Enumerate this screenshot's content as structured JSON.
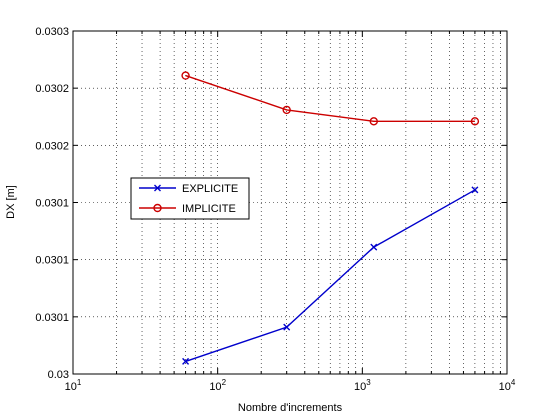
{
  "chart_data": {
    "type": "line",
    "xscale": "log",
    "xlabel": "Nombre d'increments",
    "ylabel": "DX [m]",
    "xlim": [
      10,
      10000
    ],
    "ylim": [
      0.03,
      0.0303
    ],
    "grid": true,
    "legend_position": "left-middle",
    "xticks": [
      {
        "value": 10,
        "base": "10",
        "exp": "1"
      },
      {
        "value": 100,
        "base": "10",
        "exp": "2"
      },
      {
        "value": 1000,
        "base": "10",
        "exp": "3"
      },
      {
        "value": 10000,
        "base": "10",
        "exp": "4"
      }
    ],
    "yticks": [
      {
        "value": 0.03,
        "label": "0.03"
      },
      {
        "value": 0.03005,
        "label": "0.0301"
      },
      {
        "value": 0.0301,
        "label": "0.0301"
      },
      {
        "value": 0.03015,
        "label": "0.0301"
      },
      {
        "value": 0.0302,
        "label": "0.0302"
      },
      {
        "value": 0.03025,
        "label": "0.0302"
      },
      {
        "value": 0.0303,
        "label": "0.0303"
      }
    ],
    "series": [
      {
        "name": "EXPLICITE",
        "color": "#0000cc",
        "marker": "x",
        "x": [
          60,
          300,
          1200,
          6000
        ],
        "y": [
          0.030011,
          0.030041,
          0.030111,
          0.030161
        ]
      },
      {
        "name": "IMPLICITE",
        "color": "#cc0000",
        "marker": "o",
        "x": [
          60,
          300,
          1200,
          6000
        ],
        "y": [
          0.030261,
          0.030231,
          0.030221,
          0.030221
        ]
      }
    ]
  }
}
